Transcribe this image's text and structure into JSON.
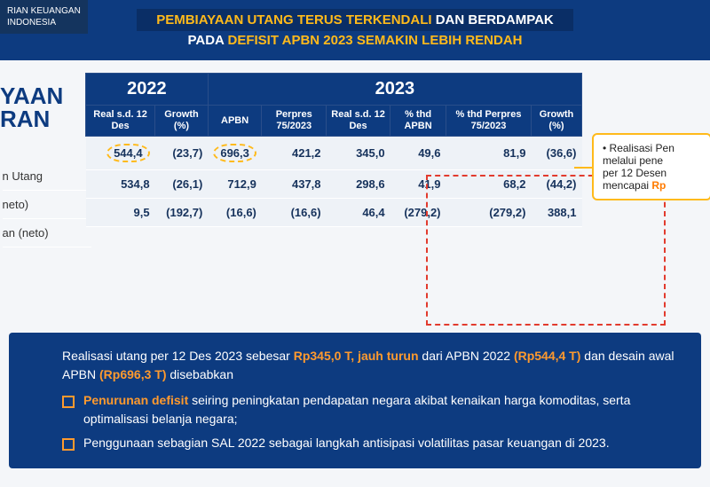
{
  "ministry": {
    "line1": "RIAN KEUANGAN",
    "line2": "INDONESIA"
  },
  "header": {
    "title_white": "PEMBIAYAAN UTANG TERUS TERKENDALI",
    "title_yellow": " DAN BERDAMPAK",
    "subtitle_pre": "PADA ",
    "subtitle_yellow": "DEFISIT APBN 2023 SEMAKIN LEBIH RENDAH"
  },
  "section": {
    "l1": "YAAN",
    "l2": "RAN"
  },
  "table": {
    "year_a": "2022",
    "year_b": "2023",
    "cols": {
      "a1": "Real s.d. 12 Des",
      "a2": "Growth (%)",
      "b1": "APBN",
      "b2": "Perpres 75/2023",
      "b3": "Real s.d. 12 Des",
      "b4": "% thd APBN",
      "b5": "% thd Perpres 75/2023",
      "b6": "Growth (%)"
    },
    "rows": [
      {
        "label": "n Utang",
        "a1": "544,4",
        "a1_circ": true,
        "a2": "(23,7)",
        "b1": "696,3",
        "b1_circ": true,
        "b2": "421,2",
        "b3": "345,0",
        "b4": "49,6",
        "b5": "81,9",
        "b6": "(36,6)"
      },
      {
        "label": "neto)",
        "a1": "534,8",
        "a1_circ": false,
        "a2": "(26,1)",
        "b1": "712,9",
        "b1_circ": false,
        "b2": "437,8",
        "b3": "298,6",
        "b4": "41,9",
        "b5": "68,2",
        "b6": "(44,2)"
      },
      {
        "label": "an (neto)",
        "a1": "9,5",
        "a1_circ": false,
        "a2": "(192,7)",
        "b1": "(16,6)",
        "b1_circ": false,
        "b2": "(16,6)",
        "b3": "46,4",
        "b4": "(279,2)",
        "b5": "(279,2)",
        "b6": "388,1"
      }
    ]
  },
  "sidecard": {
    "t1": "• Realisasi Pen",
    "t2": "melalui pene",
    "t3": "per 12 Desen",
    "t4_a": "mencapai ",
    "t4_b": "Rp"
  },
  "bottom": {
    "p1_a": "Realisasi utang per 12 Des 2023 sebesar ",
    "p1_b": "Rp345,0 T, jauh turun",
    "p1_c": " dari APBN 2022 ",
    "p1_d": "(Rp544,4 T)",
    "p1_e": " dan desain awal APBN ",
    "p1_f": "(Rp696,3 T)",
    "p1_g": " disebabkan",
    "li1_a": "Penurunan defisit",
    "li1_b": " seiring peningkatan pendapatan negara akibat kenaikan harga komoditas, serta optimalisasi belanja negara;",
    "li2": "Penggunaan sebagian SAL 2022 sebagai langkah antisipasi volatilitas pasar keuangan di 2023."
  },
  "colors": {
    "navy": "#0d3b80",
    "yellow": "#ffba1b",
    "orange": "#ff9a2e",
    "red": "#e23b2e",
    "cell_bg": "#eef2f7"
  }
}
